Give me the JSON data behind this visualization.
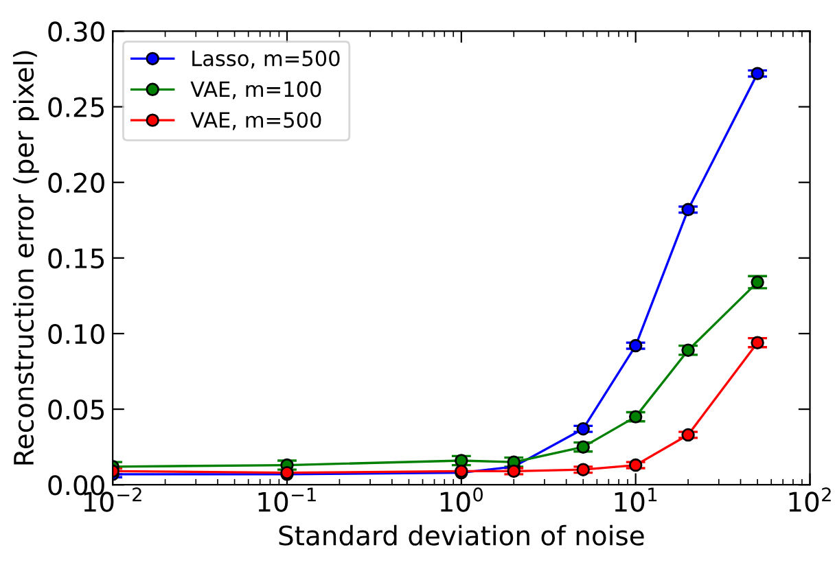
{
  "chart_data": {
    "type": "line",
    "xlabel": "Standard deviation of noise",
    "ylabel": "Reconstruction error (per pixel)",
    "x": [
      0.01,
      0.1,
      1,
      2,
      5,
      10,
      20,
      50
    ],
    "series": [
      {
        "name": "Lasso, m=500",
        "color": "#0000ff",
        "values": [
          0.007,
          0.007,
          0.008,
          0.012,
          0.037,
          0.092,
          0.182,
          0.272
        ],
        "errors": [
          0.002,
          null,
          null,
          null,
          0.002,
          0.002,
          0.002,
          0.002
        ]
      },
      {
        "name": "VAE, m=100",
        "color": "#008000",
        "values": [
          0.012,
          0.013,
          0.016,
          0.015,
          0.025,
          0.045,
          0.089,
          0.134
        ],
        "errors": [
          0.003,
          0.003,
          0.003,
          0.003,
          0.003,
          0.003,
          0.003,
          0.004
        ]
      },
      {
        "name": "VAE, m=500",
        "color": "#ff0000",
        "values": [
          0.009,
          0.008,
          0.009,
          0.009,
          0.01,
          0.013,
          0.033,
          0.094
        ],
        "errors": [
          0.002,
          null,
          null,
          0.002,
          0.002,
          0.002,
          0.002,
          0.003
        ]
      }
    ],
    "log": "x",
    "xlim": [
      0.01,
      100
    ],
    "xticks": [
      {
        "value": 0.01,
        "label": "10$^{−2}$"
      },
      {
        "value": 0.1,
        "label": "10$^{−1}$"
      },
      {
        "value": 1,
        "label": "10$^{0}$"
      },
      {
        "value": 10,
        "label": "10$^{1}$"
      },
      {
        "value": 100,
        "label": "10$^{2}$"
      }
    ],
    "ylim": [
      0,
      0.3
    ],
    "yticks": [
      {
        "value": 0,
        "label": "0.00"
      },
      {
        "value": 0.05,
        "label": "0.05"
      },
      {
        "value": 0.1,
        "label": "0.10"
      },
      {
        "value": 0.15,
        "label": "0.15"
      },
      {
        "value": 0.2,
        "label": "0.20"
      },
      {
        "value": 0.25,
        "label": "0.25"
      },
      {
        "value": 0.3,
        "label": "0.30"
      }
    ],
    "legend": "top left",
    "marker": "circle",
    "line_style": "solid",
    "grid": false
  }
}
